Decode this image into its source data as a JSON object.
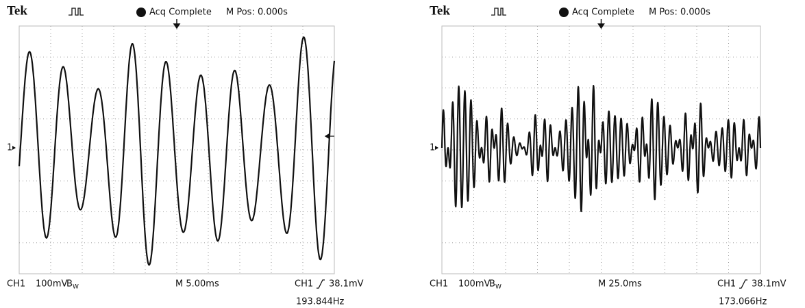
{
  "screens": [
    {
      "brand": "Tek",
      "status": "Acq Complete",
      "position": "M Pos: 0.000s",
      "marker": "1",
      "channel": "CH1",
      "volts": "100mV",
      "bw": "B",
      "bw_sub": "W",
      "timebase": "M 5.00ms",
      "trigger_channel": "CH1",
      "trigger_level": "38.1mV",
      "frequency": "193.844Hz"
    },
    {
      "brand": "Tek",
      "status": "Acq Complete",
      "position": "M Pos: 0.000s",
      "marker": "1",
      "channel": "CH1",
      "volts": "100mV",
      "bw": "B",
      "bw_sub": "W",
      "timebase": "M 25.0ms",
      "trigger_channel": "CH1",
      "trigger_level": "38.1mV",
      "frequency": "173.066Hz"
    }
  ]
}
